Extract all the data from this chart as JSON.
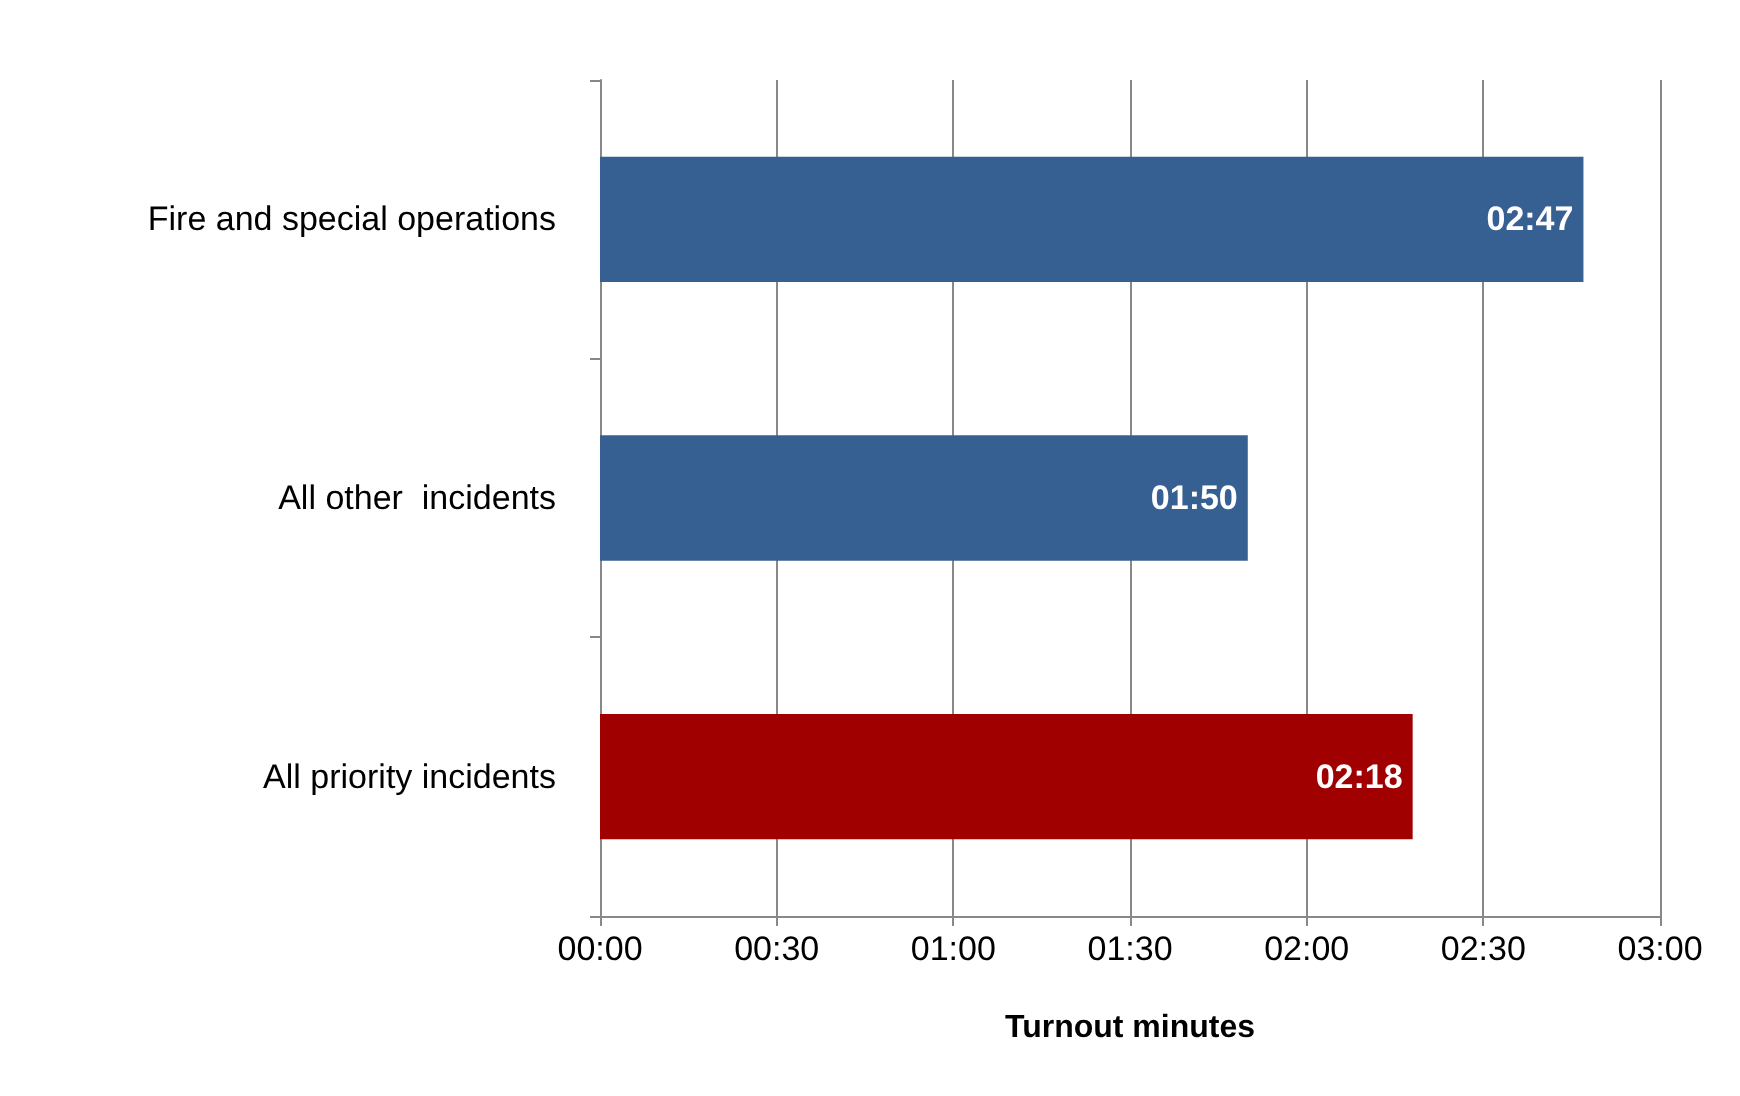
{
  "chart_data": {
    "type": "bar",
    "orientation": "horizontal",
    "xlabel": "Turnout minutes",
    "categories": [
      "Fire and special operations",
      "All other  incidents",
      "All priority incidents"
    ],
    "values": [
      167,
      110,
      138
    ],
    "colors": [
      "#376092",
      "#376092",
      "#a00000"
    ],
    "value_labels": [
      "02:47",
      "01:50",
      "02:18"
    ],
    "xlim": [
      0,
      180
    ],
    "xticks": [
      {
        "value": 0,
        "label": "00:00"
      },
      {
        "value": 30,
        "label": "00:30"
      },
      {
        "value": 60,
        "label": "01:00"
      },
      {
        "value": 90,
        "label": "01:30"
      },
      {
        "value": 120,
        "label": "02:00"
      },
      {
        "value": 150,
        "label": "02:30"
      },
      {
        "value": 180,
        "label": "03:00"
      }
    ],
    "grid": "x"
  }
}
